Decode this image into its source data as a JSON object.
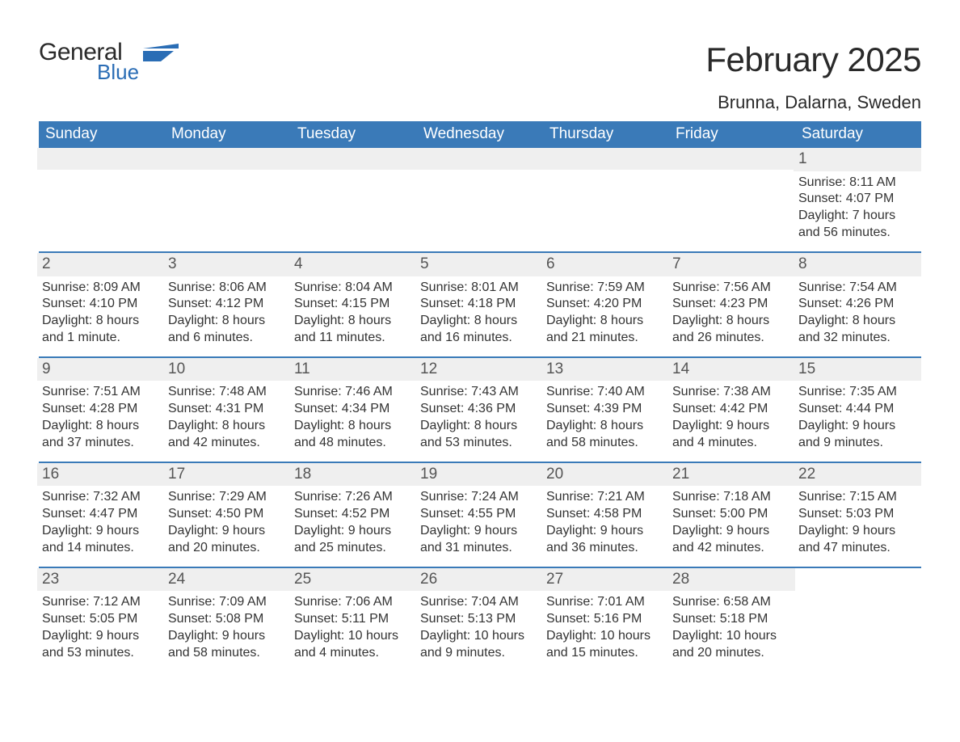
{
  "logo": {
    "general": "General",
    "blue": "Blue",
    "icon_color": "#2a6db5"
  },
  "title": "February 2025",
  "location": "Brunna, Dalarna, Sweden",
  "day_headers": [
    "Sunday",
    "Monday",
    "Tuesday",
    "Wednesday",
    "Thursday",
    "Friday",
    "Saturday"
  ],
  "colors": {
    "header_bg": "#3a7ab8",
    "header_text": "#ffffff",
    "daynum_bg": "#efefef",
    "rule": "#3a7ab8",
    "body_text": "#333333",
    "logo_blue": "#2a6db5"
  },
  "typography": {
    "title_fontsize": 42,
    "location_fontsize": 22,
    "dayheader_fontsize": 19,
    "body_fontsize": 16
  },
  "weeks": [
    [
      {
        "n": "",
        "empty": true
      },
      {
        "n": "",
        "empty": true
      },
      {
        "n": "",
        "empty": true
      },
      {
        "n": "",
        "empty": true
      },
      {
        "n": "",
        "empty": true
      },
      {
        "n": "",
        "empty": true
      },
      {
        "n": "1",
        "sunrise": "Sunrise: 8:11 AM",
        "sunset": "Sunset: 4:07 PM",
        "daylight": "Daylight: 7 hours and 56 minutes."
      }
    ],
    [
      {
        "n": "2",
        "sunrise": "Sunrise: 8:09 AM",
        "sunset": "Sunset: 4:10 PM",
        "daylight": "Daylight: 8 hours and 1 minute."
      },
      {
        "n": "3",
        "sunrise": "Sunrise: 8:06 AM",
        "sunset": "Sunset: 4:12 PM",
        "daylight": "Daylight: 8 hours and 6 minutes."
      },
      {
        "n": "4",
        "sunrise": "Sunrise: 8:04 AM",
        "sunset": "Sunset: 4:15 PM",
        "daylight": "Daylight: 8 hours and 11 minutes."
      },
      {
        "n": "5",
        "sunrise": "Sunrise: 8:01 AM",
        "sunset": "Sunset: 4:18 PM",
        "daylight": "Daylight: 8 hours and 16 minutes."
      },
      {
        "n": "6",
        "sunrise": "Sunrise: 7:59 AM",
        "sunset": "Sunset: 4:20 PM",
        "daylight": "Daylight: 8 hours and 21 minutes."
      },
      {
        "n": "7",
        "sunrise": "Sunrise: 7:56 AM",
        "sunset": "Sunset: 4:23 PM",
        "daylight": "Daylight: 8 hours and 26 minutes."
      },
      {
        "n": "8",
        "sunrise": "Sunrise: 7:54 AM",
        "sunset": "Sunset: 4:26 PM",
        "daylight": "Daylight: 8 hours and 32 minutes."
      }
    ],
    [
      {
        "n": "9",
        "sunrise": "Sunrise: 7:51 AM",
        "sunset": "Sunset: 4:28 PM",
        "daylight": "Daylight: 8 hours and 37 minutes."
      },
      {
        "n": "10",
        "sunrise": "Sunrise: 7:48 AM",
        "sunset": "Sunset: 4:31 PM",
        "daylight": "Daylight: 8 hours and 42 minutes."
      },
      {
        "n": "11",
        "sunrise": "Sunrise: 7:46 AM",
        "sunset": "Sunset: 4:34 PM",
        "daylight": "Daylight: 8 hours and 48 minutes."
      },
      {
        "n": "12",
        "sunrise": "Sunrise: 7:43 AM",
        "sunset": "Sunset: 4:36 PM",
        "daylight": "Daylight: 8 hours and 53 minutes."
      },
      {
        "n": "13",
        "sunrise": "Sunrise: 7:40 AM",
        "sunset": "Sunset: 4:39 PM",
        "daylight": "Daylight: 8 hours and 58 minutes."
      },
      {
        "n": "14",
        "sunrise": "Sunrise: 7:38 AM",
        "sunset": "Sunset: 4:42 PM",
        "daylight": "Daylight: 9 hours and 4 minutes."
      },
      {
        "n": "15",
        "sunrise": "Sunrise: 7:35 AM",
        "sunset": "Sunset: 4:44 PM",
        "daylight": "Daylight: 9 hours and 9 minutes."
      }
    ],
    [
      {
        "n": "16",
        "sunrise": "Sunrise: 7:32 AM",
        "sunset": "Sunset: 4:47 PM",
        "daylight": "Daylight: 9 hours and 14 minutes."
      },
      {
        "n": "17",
        "sunrise": "Sunrise: 7:29 AM",
        "sunset": "Sunset: 4:50 PM",
        "daylight": "Daylight: 9 hours and 20 minutes."
      },
      {
        "n": "18",
        "sunrise": "Sunrise: 7:26 AM",
        "sunset": "Sunset: 4:52 PM",
        "daylight": "Daylight: 9 hours and 25 minutes."
      },
      {
        "n": "19",
        "sunrise": "Sunrise: 7:24 AM",
        "sunset": "Sunset: 4:55 PM",
        "daylight": "Daylight: 9 hours and 31 minutes."
      },
      {
        "n": "20",
        "sunrise": "Sunrise: 7:21 AM",
        "sunset": "Sunset: 4:58 PM",
        "daylight": "Daylight: 9 hours and 36 minutes."
      },
      {
        "n": "21",
        "sunrise": "Sunrise: 7:18 AM",
        "sunset": "Sunset: 5:00 PM",
        "daylight": "Daylight: 9 hours and 42 minutes."
      },
      {
        "n": "22",
        "sunrise": "Sunrise: 7:15 AM",
        "sunset": "Sunset: 5:03 PM",
        "daylight": "Daylight: 9 hours and 47 minutes."
      }
    ],
    [
      {
        "n": "23",
        "sunrise": "Sunrise: 7:12 AM",
        "sunset": "Sunset: 5:05 PM",
        "daylight": "Daylight: 9 hours and 53 minutes."
      },
      {
        "n": "24",
        "sunrise": "Sunrise: 7:09 AM",
        "sunset": "Sunset: 5:08 PM",
        "daylight": "Daylight: 9 hours and 58 minutes."
      },
      {
        "n": "25",
        "sunrise": "Sunrise: 7:06 AM",
        "sunset": "Sunset: 5:11 PM",
        "daylight": "Daylight: 10 hours and 4 minutes."
      },
      {
        "n": "26",
        "sunrise": "Sunrise: 7:04 AM",
        "sunset": "Sunset: 5:13 PM",
        "daylight": "Daylight: 10 hours and 9 minutes."
      },
      {
        "n": "27",
        "sunrise": "Sunrise: 7:01 AM",
        "sunset": "Sunset: 5:16 PM",
        "daylight": "Daylight: 10 hours and 15 minutes."
      },
      {
        "n": "28",
        "sunrise": "Sunrise: 6:58 AM",
        "sunset": "Sunset: 5:18 PM",
        "daylight": "Daylight: 10 hours and 20 minutes."
      },
      {
        "n": "",
        "blank": true
      }
    ]
  ]
}
